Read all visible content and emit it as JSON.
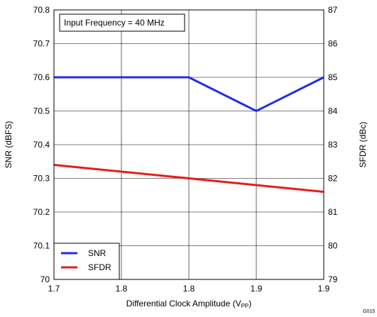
{
  "chart_data": {
    "type": "line",
    "annotation": "Input Frequency = 40 MHz",
    "figure_id": "G015",
    "xlabel_main": "Differential Clock Amplitude (V",
    "xlabel_sub": "PP",
    "xlabel_close": ")",
    "ylabel_left": "SNR (dBFS)",
    "ylabel_right": "SFDR (dBc)",
    "x_tick_labels": [
      "1.7",
      "1.8",
      "1.8",
      "1.9",
      "1.9"
    ],
    "x_tick_values": [
      1.7,
      1.75,
      1.8,
      1.85,
      1.9
    ],
    "xlim": [
      1.7,
      1.9
    ],
    "y_left_ticks": [
      "70",
      "70.1",
      "70.2",
      "70.3",
      "70.4",
      "70.5",
      "70.6",
      "70.7",
      "70.8"
    ],
    "ylim_left": [
      70,
      70.8
    ],
    "y_right_ticks": [
      "79",
      "80",
      "81",
      "82",
      "83",
      "84",
      "85",
      "86",
      "87"
    ],
    "ylim_right": [
      79,
      87
    ],
    "grid": true,
    "legend_position": "bottom-left",
    "series": [
      {
        "name": "SNR",
        "axis": "left",
        "color": "#1f2ee8",
        "x": [
          1.7,
          1.8,
          1.85,
          1.9
        ],
        "y": [
          70.6,
          70.6,
          70.5,
          70.6
        ]
      },
      {
        "name": "SFDR",
        "axis": "right",
        "color": "#e81c1c",
        "x": [
          1.7,
          1.9
        ],
        "y": [
          82.4,
          81.6
        ]
      }
    ]
  }
}
